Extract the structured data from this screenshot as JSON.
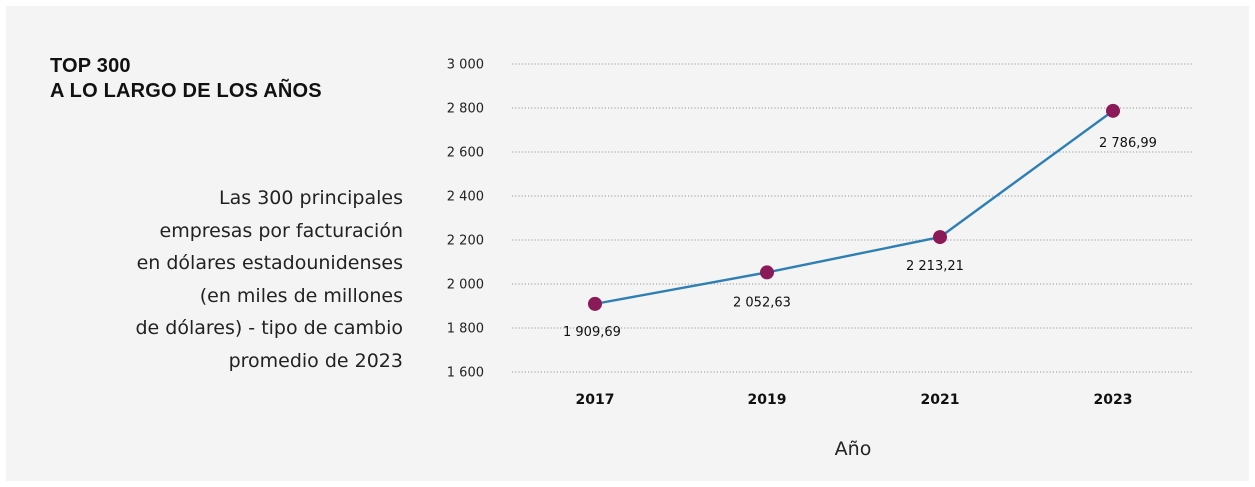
{
  "title_lines": [
    "TOP 300",
    "A LO LARGO DE LOS AÑOS"
  ],
  "description_lines": [
    "Las 300 principales",
    "empresas por facturación",
    "en dólares estadounidenses",
    "(en miles de millones",
    "de dólares) - tipo de cambio",
    "promedio de 2023"
  ],
  "colors": {
    "line": "#2e7fb3",
    "marker": "#8b1a58",
    "grid": "#9a9a9a",
    "background": "#f4f4f4"
  },
  "chart_data": {
    "type": "line",
    "title": "TOP 300 A LO LARGO DE LOS AÑOS",
    "xlabel": "Año",
    "ylabel": "",
    "categories": [
      "2017",
      "2019",
      "2021",
      "2023"
    ],
    "values": [
      1909.69,
      2052.63,
      2213.21,
      2786.99
    ],
    "data_labels": [
      "1 909,69",
      "2 052,63",
      "2 213,21",
      "2 786,99"
    ],
    "ylim": [
      1600,
      3000
    ],
    "yticks": [
      1600,
      1800,
      2000,
      2200,
      2400,
      2600,
      2800,
      3000
    ],
    "ytick_labels": [
      "1 600",
      "1 800",
      "2 000",
      "2 200",
      "2 400",
      "2 600",
      "2 800",
      "3 000"
    ],
    "grid": true,
    "grid_style": "dotted horizontal",
    "legend": "none"
  }
}
